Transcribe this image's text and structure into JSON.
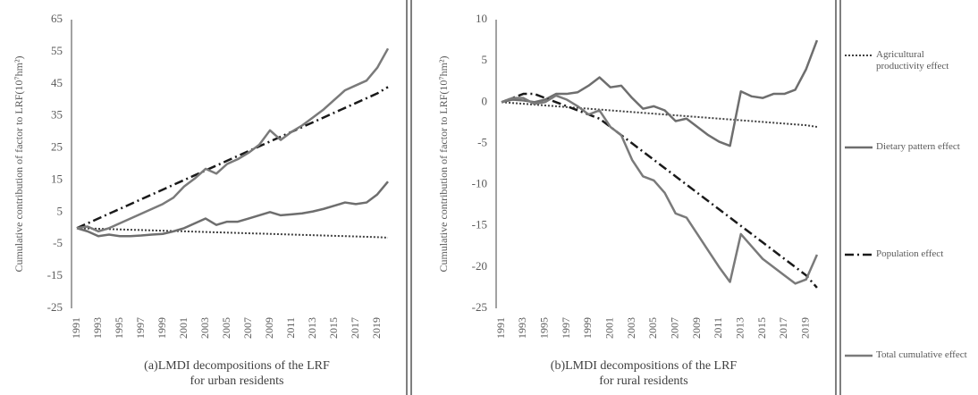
{
  "chart_data": [
    {
      "type": "line",
      "y_label": "Cumulative contribution of factor to LRF(10⁷hm²)",
      "caption": [
        "(a)LMDI decompositions of the LRF",
        "for urban residents"
      ],
      "categories": [
        "1991",
        null,
        "1993",
        null,
        "1995",
        null,
        "1997",
        null,
        "1999",
        null,
        "2001",
        null,
        "2003",
        null,
        "2005",
        null,
        "2007",
        null,
        "2009",
        null,
        "2011",
        null,
        "2013",
        null,
        "2015",
        null,
        "2017",
        null,
        "2019",
        null
      ],
      "ylim": [
        -25,
        65
      ],
      "yticks": [
        -25,
        -15,
        -5,
        5,
        15,
        25,
        35,
        45,
        55,
        65
      ],
      "series": [
        {
          "name": "Agricultural productivity effect",
          "color": "#404040",
          "dash": "dotted",
          "values": [
            0,
            -0.1,
            -0.2,
            -0.3,
            -0.4,
            -0.5,
            -0.6,
            -0.7,
            -0.8,
            -0.9,
            -1,
            -1.1,
            -1.2,
            -1.3,
            -1.4,
            -1.5,
            -1.6,
            -1.7,
            -1.8,
            -1.9,
            -2,
            -2.1,
            -2.2,
            -2.3,
            -2.4,
            -2.5,
            -2.6,
            -2.7,
            -2.8,
            -3
          ]
        },
        {
          "name": "Dietary pattern effect",
          "color": "#6e6e6e",
          "dash": "solid",
          "values": [
            0,
            -1,
            -2.5,
            -2,
            -2.5,
            -2.5,
            -2.3,
            -2,
            -1.8,
            -1,
            0,
            1.5,
            3,
            1,
            2,
            2,
            3,
            4,
            5,
            4,
            4.3,
            4.6,
            5.2,
            6,
            7,
            8,
            7.5,
            8,
            10.5,
            14.5
          ]
        },
        {
          "name": "Population effect",
          "color": "#1a1a1a",
          "dash": "dashdot",
          "values": [
            0,
            1.5,
            3,
            4.5,
            6,
            7.5,
            9,
            10.5,
            12,
            13.5,
            15,
            16.5,
            18,
            19.5,
            21,
            22.5,
            24,
            25.5,
            27,
            28.5,
            30,
            31.5,
            33,
            34.5,
            36,
            37.5,
            39,
            40.5,
            42,
            44
          ]
        },
        {
          "name": "Total cumulative effect",
          "color": "#7a7a7a",
          "dash": "solid",
          "values": [
            0,
            0.5,
            -1,
            0,
            1.5,
            3,
            4.5,
            6,
            7.5,
            9.5,
            13,
            15.5,
            18.5,
            17,
            20,
            21.5,
            23.5,
            26,
            30.5,
            27.5,
            30,
            32,
            34.5,
            37,
            40,
            43,
            44.5,
            46,
            50,
            56
          ]
        }
      ]
    },
    {
      "type": "line",
      "y_label": "Cumulative contribution of factor to LRF(10⁷hm²)",
      "caption": [
        "(b)LMDI decompositions of the LRF",
        "for rural residents"
      ],
      "categories": [
        "1991",
        null,
        "1993",
        null,
        "1995",
        null,
        "1997",
        null,
        "1999",
        null,
        "2001",
        null,
        "2003",
        null,
        "2005",
        null,
        "2007",
        null,
        "2009",
        null,
        "2011",
        null,
        "2013",
        null,
        "2015",
        null,
        "2017",
        null,
        "2019",
        null
      ],
      "ylim": [
        -25,
        10
      ],
      "yticks": [
        -25,
        -20,
        -15,
        -10,
        -5,
        0,
        5,
        10
      ],
      "series": [
        {
          "color": "#404040",
          "dash": "dotted",
          "values": [
            0,
            -0.1,
            -0.2,
            -0.3,
            -0.4,
            -0.5,
            -0.6,
            -0.7,
            -0.8,
            -0.9,
            -1,
            -1.1,
            -1.2,
            -1.3,
            -1.4,
            -1.5,
            -1.6,
            -1.7,
            -1.8,
            -1.9,
            -2,
            -2.1,
            -2.2,
            -2.3,
            -2.4,
            -2.5,
            -2.6,
            -2.7,
            -2.8,
            -3
          ]
        },
        {
          "color": "#6e6e6e",
          "dash": "solid",
          "values": [
            0,
            0.3,
            0.2,
            0,
            0.3,
            1,
            1,
            1.2,
            2,
            3,
            1.8,
            2,
            0.5,
            -0.8,
            -0.5,
            -1,
            -2.3,
            -2,
            -3,
            -4,
            -4.8,
            -5.3,
            1.3,
            0.7,
            0.5,
            1,
            1,
            1.5,
            4,
            7.5
          ]
        },
        {
          "color": "#1a1a1a",
          "dash": "dashdot",
          "values": [
            0,
            0.5,
            1,
            1,
            0.5,
            0,
            -0.5,
            -1,
            -1.5,
            -2,
            -3,
            -4,
            -5,
            -6,
            -7,
            -8,
            -9,
            -10,
            -11,
            -12,
            -13,
            -14,
            -15,
            -16,
            -17,
            -18,
            -19,
            -20,
            -21,
            -22.5
          ]
        },
        {
          "color": "#7a7a7a",
          "dash": "solid",
          "values": [
            0,
            0.5,
            0.5,
            -0.2,
            0,
            0.8,
            0.3,
            -0.5,
            -1.5,
            -1,
            -3,
            -4,
            -7,
            -9,
            -9.5,
            -11,
            -13.5,
            -14,
            -16,
            -18,
            -20,
            -21.8,
            -16,
            -17.5,
            -19,
            -20,
            -21,
            -22,
            -21.5,
            -18.5
          ]
        }
      ]
    }
  ]
}
